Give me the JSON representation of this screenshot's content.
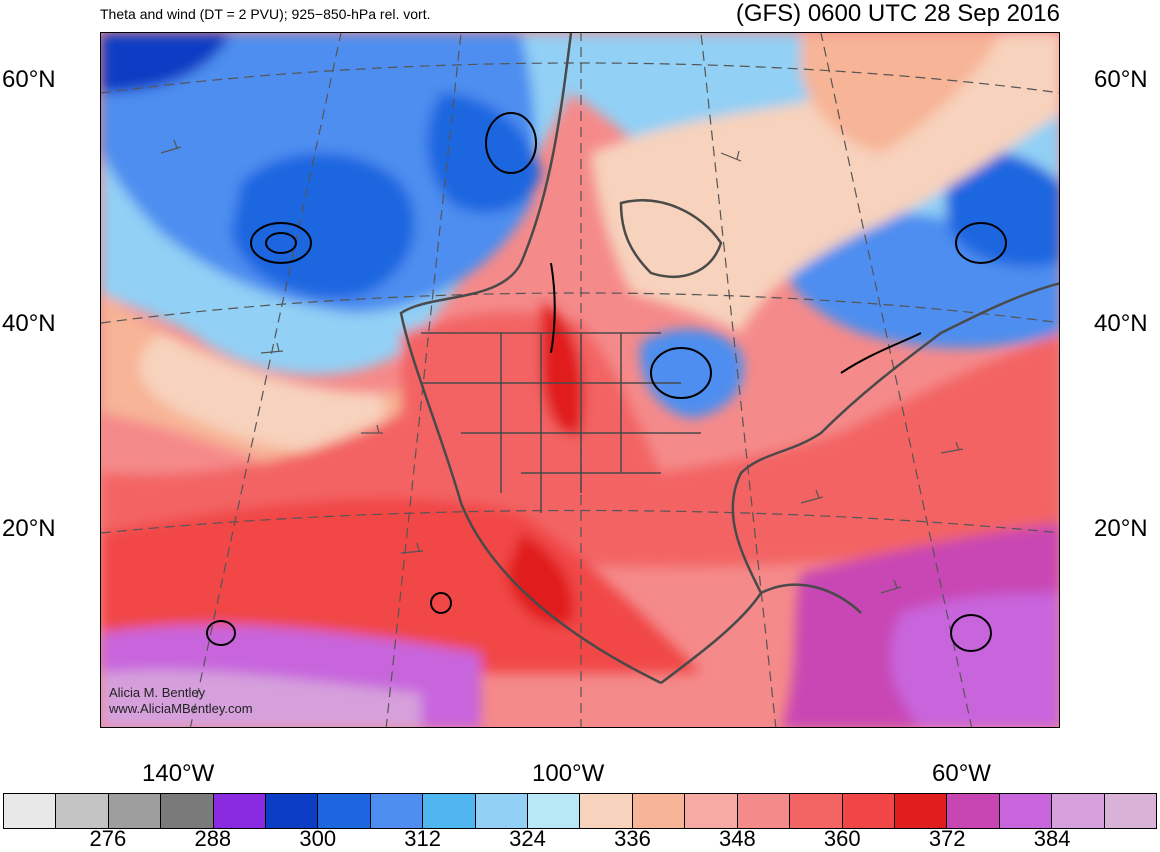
{
  "header": {
    "title_left": "Theta and wind (DT = 2 PVU); 925−850-hPa rel. vort.",
    "title_right": "(GFS) 0600 UTC 28 Sep 2016"
  },
  "axes": {
    "lat_labels": [
      "60°N",
      "40°N",
      "20°N"
    ],
    "lon_labels": [
      "140°W",
      "100°W",
      "60°W"
    ]
  },
  "credit": {
    "line1": "Alicia M. Bentley",
    "line2": "www.AliciaMBentley.com"
  },
  "colorbar": {
    "colors": [
      "#e8e8e8",
      "#c4c4c4",
      "#9e9e9e",
      "#7a7a7a",
      "#8a2be2",
      "#0b3ec4",
      "#1c66e0",
      "#4d8ef0",
      "#4fb6f0",
      "#92d0f5",
      "#b8e8f5",
      "#f7d2bc",
      "#f7b496",
      "#f7aaa4",
      "#f58a8a",
      "#f36464",
      "#f14646",
      "#e01e1e",
      "#c846b4",
      "#c865dd",
      "#d6a0dc",
      "#d9b2d8"
    ],
    "labels": [
      "276",
      "288",
      "300",
      "312",
      "324",
      "336",
      "348",
      "360",
      "372",
      "384"
    ]
  }
}
